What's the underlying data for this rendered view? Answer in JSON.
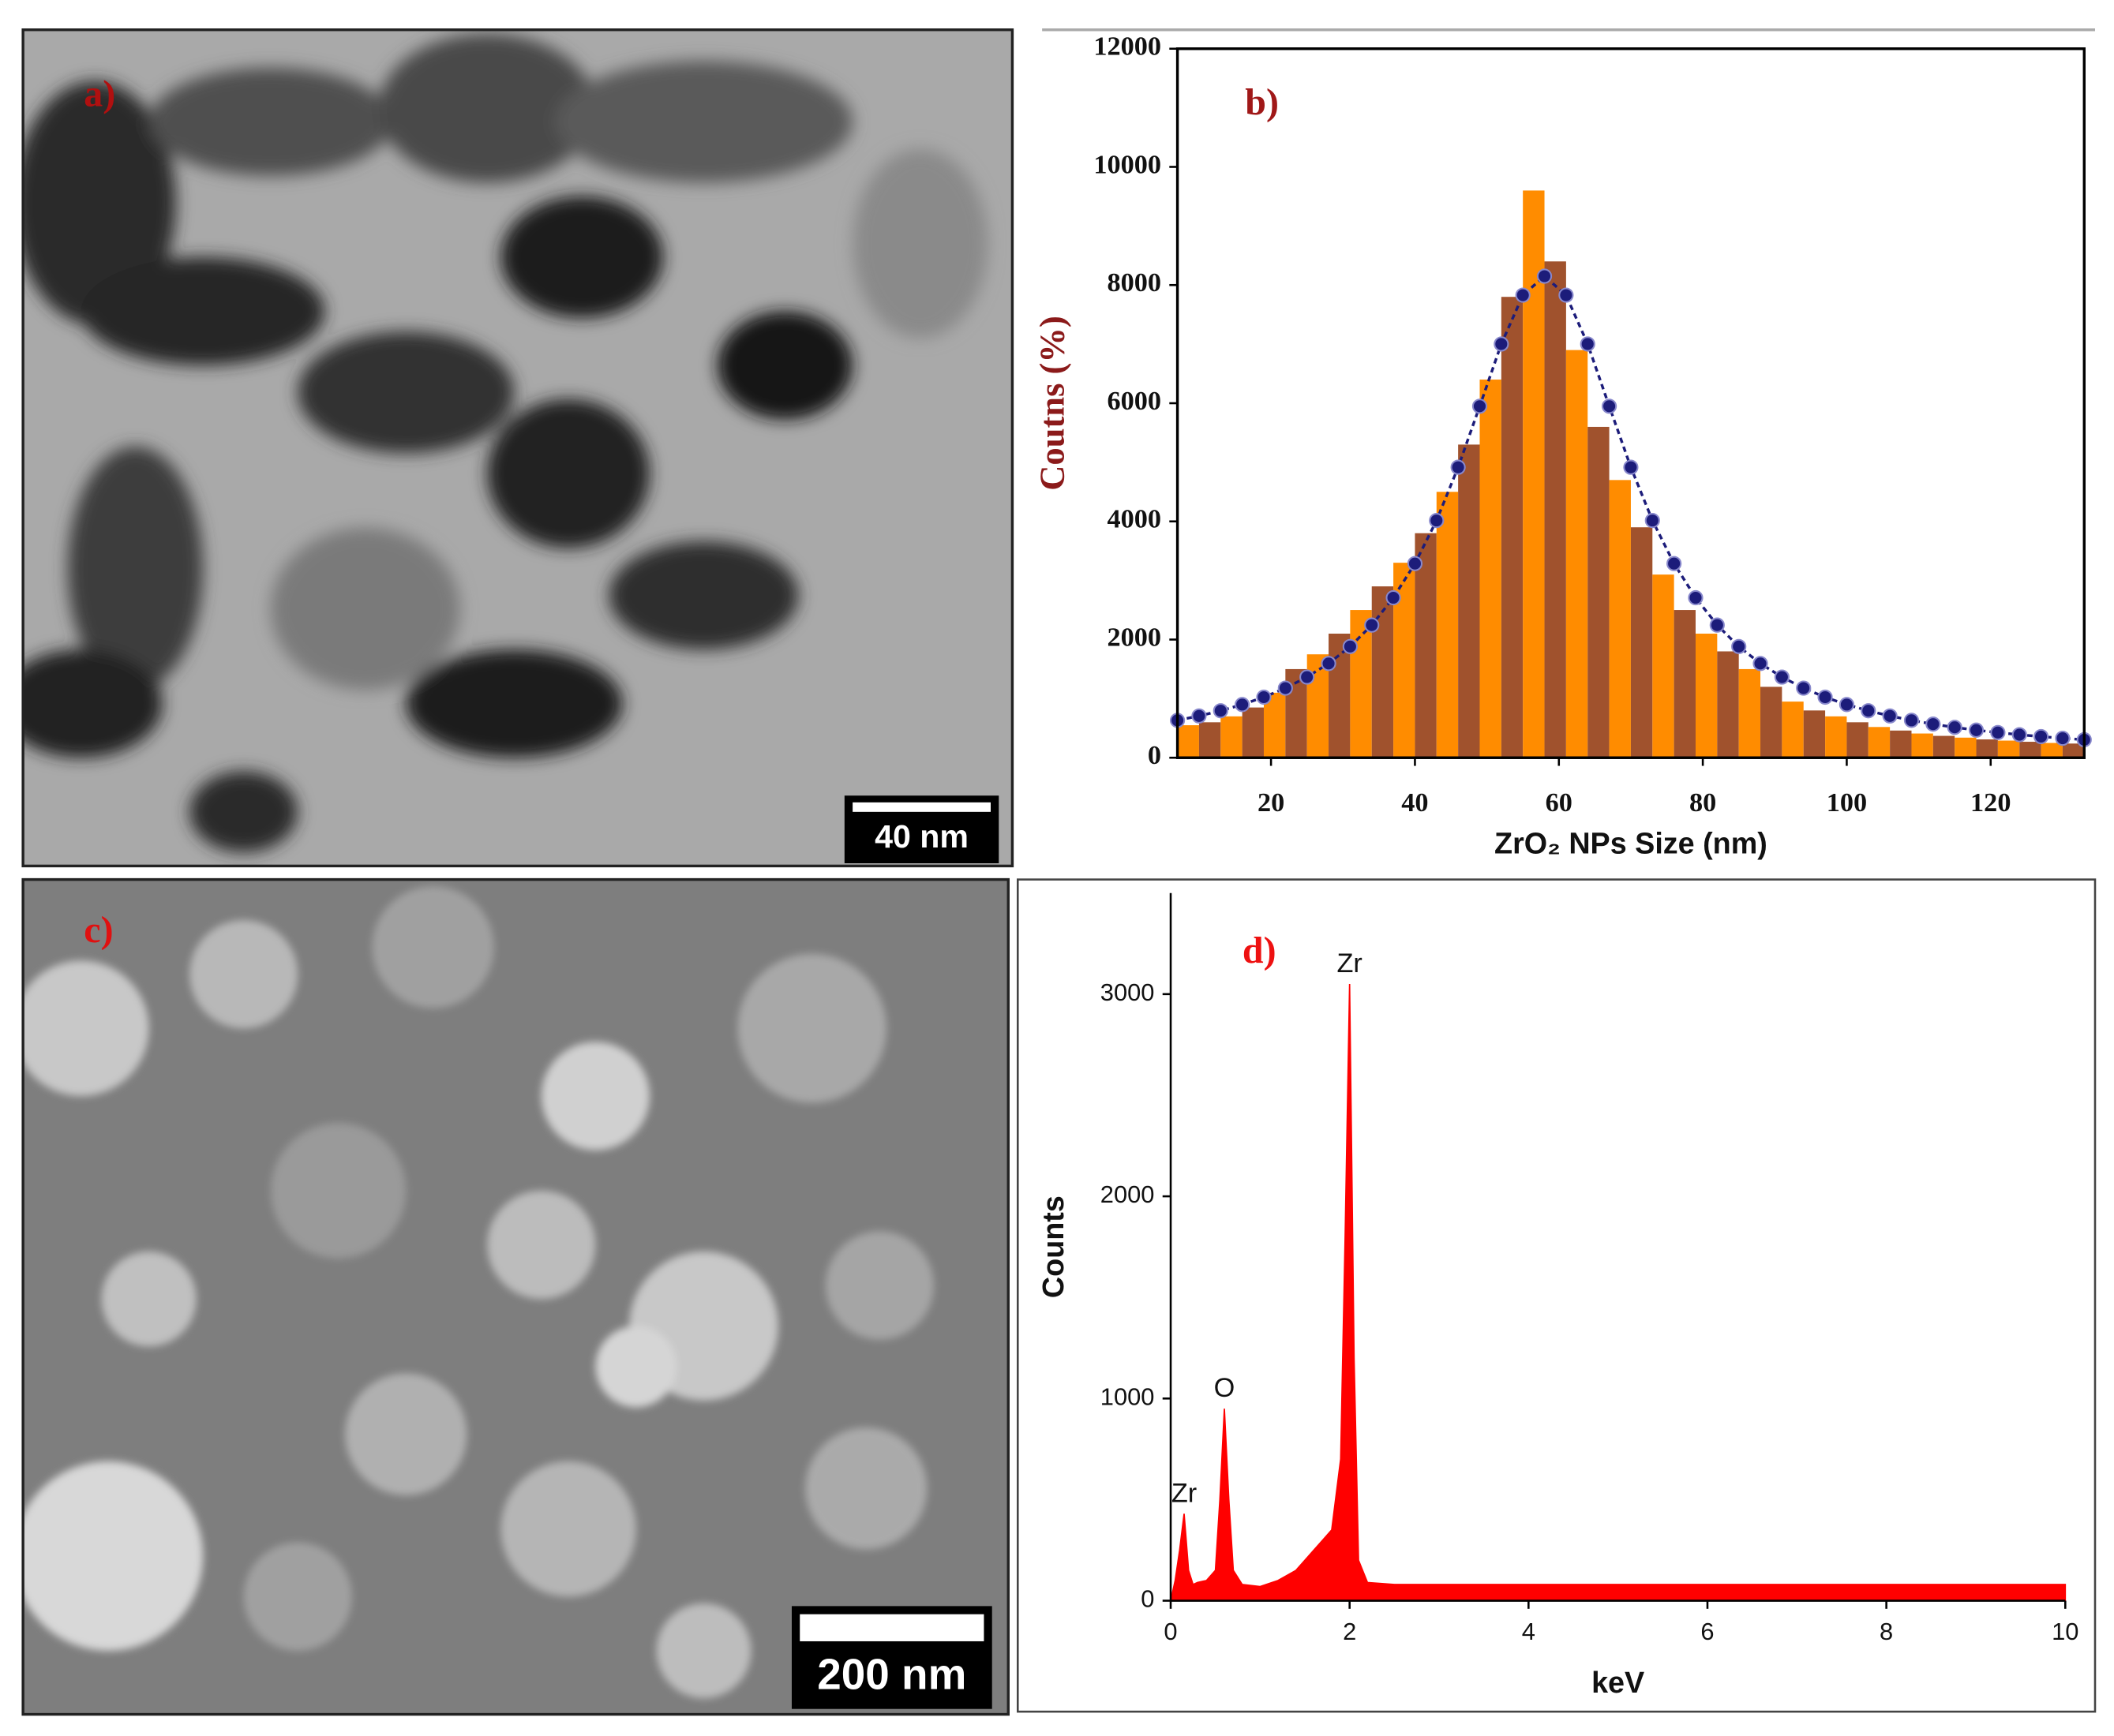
{
  "images": [
    {
      "label": "a)",
      "scale_bar": "40 nm"
    },
    {
      "label": "c)",
      "scale_bar": "200 nm"
    }
  ],
  "chart_data": [
    {
      "type": "histogram",
      "title": "b)",
      "xlabel": "ZrO₂ NPs Size (nm)",
      "ylabel": "Coutns (%)",
      "bins": [
        7,
        10,
        13,
        16,
        19,
        22,
        25,
        28,
        31,
        34,
        37,
        40,
        43,
        46,
        49,
        52,
        55,
        58,
        61,
        64,
        67,
        70,
        73,
        76,
        79,
        82,
        85,
        88,
        91,
        94,
        97,
        100,
        103,
        106,
        109,
        112,
        115,
        118,
        121,
        124,
        127,
        130,
        133
      ],
      "values": [
        550,
        600,
        700,
        850,
        1100,
        1500,
        1750,
        2100,
        2500,
        2900,
        3300,
        3800,
        4500,
        5300,
        6400,
        7800,
        9600,
        8400,
        6900,
        5600,
        4700,
        3900,
        3100,
        2500,
        2100,
        1800,
        1500,
        1200,
        950,
        800,
        700,
        600,
        520,
        460,
        410,
        370,
        340,
        310,
        290,
        270,
        250,
        240
      ],
      "colors": [
        "#ff8c00",
        "#a0522d"
      ],
      "fit": {
        "color": "#1c1c7a",
        "x": [
          7,
          10,
          13,
          16,
          19,
          22,
          25,
          28,
          31,
          34,
          37,
          40,
          43,
          46,
          49,
          52,
          55,
          58,
          61,
          64,
          67,
          70,
          73,
          76,
          79,
          82,
          85,
          88,
          91,
          94,
          97,
          100,
          103,
          106,
          109,
          112,
          115,
          118,
          121,
          124,
          127,
          130,
          133
        ],
        "values": [
          633,
          707,
          795,
          900,
          1025,
          1178,
          1365,
          1595,
          1882,
          2245,
          2708,
          3286,
          4015,
          4916,
          5949,
          7002,
          7829,
          8150,
          7829,
          7002,
          5949,
          4916,
          4015,
          3286,
          2708,
          2245,
          1882,
          1595,
          1365,
          1178,
          1025,
          900,
          795,
          707,
          633,
          569,
          515,
          467,
          426,
          390,
          358,
          330,
          305
        ]
      },
      "xlim": [
        7,
        133
      ],
      "xticks": [
        20,
        40,
        60,
        80,
        100,
        120
      ],
      "ylim": [
        0,
        12000
      ],
      "yticks": [
        0,
        2000,
        4000,
        6000,
        8000,
        10000,
        12000
      ]
    },
    {
      "type": "area",
      "title": "d)",
      "xlabel": "keV",
      "ylabel": "Counts",
      "color": "#ff0000",
      "x": [
        0,
        0.05,
        0.1,
        0.15,
        0.2,
        0.25,
        0.3,
        0.4,
        0.5,
        0.55,
        0.6,
        0.65,
        0.7,
        0.8,
        1.0,
        1.2,
        1.4,
        1.6,
        1.7,
        1.8,
        1.9,
        1.95,
        2.0,
        2.05,
        2.1,
        2.2,
        2.5,
        3,
        4,
        5,
        6,
        7,
        8,
        9,
        10
      ],
      "values": [
        0,
        100,
        250,
        430,
        150,
        80,
        90,
        100,
        150,
        500,
        950,
        500,
        150,
        80,
        70,
        100,
        150,
        250,
        300,
        350,
        700,
        1800,
        3050,
        1200,
        200,
        90,
        80,
        80,
        80,
        80,
        80,
        80,
        80,
        80,
        80
      ],
      "annotations": [
        {
          "text": "Zr",
          "x": 0.15
        },
        {
          "text": "O",
          "x": 0.6
        },
        {
          "text": "Zr",
          "x": 2.0
        }
      ],
      "xlim": [
        0,
        10
      ],
      "xticks": [
        0,
        2,
        4,
        6,
        8,
        10
      ],
      "ylim": [
        0,
        3500
      ],
      "yticks": [
        0,
        1000,
        2000,
        3000
      ]
    }
  ]
}
